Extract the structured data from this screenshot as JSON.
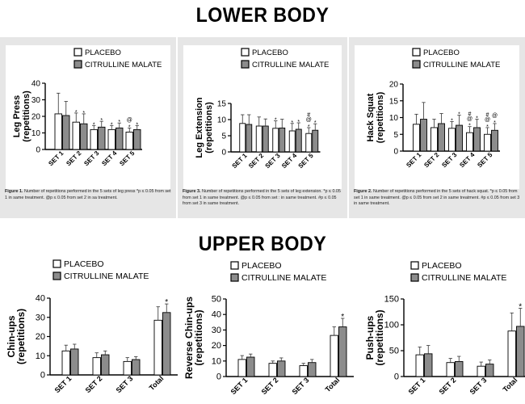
{
  "headings": {
    "lower": "LOWER BODY",
    "upper": "UPPER BODY"
  },
  "colors": {
    "placebo_fill": "#ffffff",
    "citrulline_fill": "#8c8c8c",
    "panel_bg": "#e6e6e6",
    "ink": "#000000"
  },
  "legend": {
    "placebo": "PLACEBO",
    "citrulline": "CITRULLINE MALATE"
  },
  "captions": {
    "fig1_label": "Figure 1.",
    "fig1_text": "Number of repetitions performed in the 5 sets of leg press *p ≤ 0.05 from set 1 in same treatment. @p ≤ 0.05 from set 2 in sa treatment.",
    "fig3_label": "Figure 3.",
    "fig3_text": "Number of repetitions performed in the 5 sets of leg extension. *p ≤ 0.05 from set 1 in same treatment. @p ≤ 0.05 from set : in same treatment. #p ≤ 0.05 from set 3 in same treatment.",
    "fig2_label": "Figure 2.",
    "fig2_text": "Number of repetitions performed in the 5 sets of hack squat. *p ≤ 0.05 from set 1 in same treatment. @p ≤ 0.05 from set 2 in same treatment. #p ≤ 0.05 from set 3 in same treatment."
  },
  "chart_data": [
    {
      "id": "leg_press",
      "type": "bar",
      "ylabel": "Leg Press (repetitions)",
      "ylabel_lines": [
        "Leg Press",
        "(repetitions)"
      ],
      "ylim": [
        0,
        40
      ],
      "yticks": [
        0,
        10,
        20,
        30,
        40
      ],
      "categories": [
        "SET 1",
        "SET 2",
        "SET 3",
        "SET 4",
        "SET 5"
      ],
      "series": [
        {
          "name": "PLACEBO",
          "values": [
            21.5,
            16.5,
            12,
            12,
            10.5
          ],
          "errors": [
            12.5,
            5.5,
            2.5,
            2.5,
            2.5
          ]
        },
        {
          "name": "CITRULLINE MALATE",
          "values": [
            20.5,
            15.5,
            13.5,
            13,
            12
          ],
          "errors": [
            8.5,
            6,
            3.5,
            3,
            2.5
          ]
        }
      ],
      "annotations": [
        {
          "category": 1,
          "series": 0,
          "marks": [
            "*"
          ]
        },
        {
          "category": 1,
          "series": 1,
          "marks": [
            "*"
          ]
        },
        {
          "category": 2,
          "series": 0,
          "marks": [
            "*"
          ]
        },
        {
          "category": 2,
          "series": 1,
          "marks": [
            "*"
          ]
        },
        {
          "category": 3,
          "series": 0,
          "marks": [
            "*"
          ]
        },
        {
          "category": 3,
          "series": 1,
          "marks": [
            "*"
          ]
        },
        {
          "category": 4,
          "series": 0,
          "marks": [
            "@",
            "*"
          ]
        },
        {
          "category": 4,
          "series": 1,
          "marks": [
            "*"
          ]
        }
      ]
    },
    {
      "id": "leg_extension",
      "type": "bar",
      "ylabel": "Leg Extension (repetitions)",
      "ylabel_lines": [
        "Leg Extension",
        "(repetitions)"
      ],
      "ylim": [
        0,
        15
      ],
      "yticks": [
        0,
        5,
        10,
        15
      ],
      "categories": [
        "SET 1",
        "SET 2",
        "SET 3",
        "SET 4",
        "SET 5"
      ],
      "series": [
        {
          "name": "PLACEBO",
          "values": [
            8.8,
            8,
            7.3,
            6.5,
            5.7
          ],
          "errors": [
            2.7,
            2.8,
            2.3,
            2.3,
            1.8
          ]
        },
        {
          "name": "CITRULLINE MALATE",
          "values": [
            8.5,
            8,
            7.4,
            7,
            6.7
          ],
          "errors": [
            3,
            2.2,
            2.7,
            2,
            2
          ]
        }
      ],
      "annotations": [
        {
          "category": 2,
          "series": 0,
          "marks": [
            "*"
          ]
        },
        {
          "category": 3,
          "series": 0,
          "marks": [
            "*"
          ]
        },
        {
          "category": 3,
          "series": 1,
          "marks": [
            "*"
          ]
        },
        {
          "category": 4,
          "series": 0,
          "marks": [
            "#",
            "@",
            "*"
          ]
        },
        {
          "category": 4,
          "series": 1,
          "marks": [
            "*"
          ]
        }
      ]
    },
    {
      "id": "hack_squat",
      "type": "bar",
      "ylabel": "Hack Squat (repetitions)",
      "ylabel_lines": [
        "Hack Squat",
        "(repetitions)"
      ],
      "ylim": [
        0,
        20
      ],
      "yticks": [
        0,
        5,
        10,
        15,
        20
      ],
      "categories": [
        "SET 1",
        "SET 2",
        "SET 3",
        "SET 4",
        "SET 5"
      ],
      "series": [
        {
          "name": "PLACEBO",
          "values": [
            8,
            7,
            6.8,
            5.5,
            5
          ],
          "errors": [
            3,
            2.5,
            2,
            1.8,
            2
          ]
        },
        {
          "name": "CITRULLINE MALATE",
          "values": [
            9.5,
            8.2,
            7.7,
            7,
            6.2
          ],
          "errors": [
            5,
            3,
            3,
            2.5,
            2
          ]
        }
      ],
      "annotations": [
        {
          "category": 2,
          "series": 0,
          "marks": [
            "*"
          ]
        },
        {
          "category": 2,
          "series": 1,
          "marks": [
            "*"
          ]
        },
        {
          "category": 3,
          "series": 0,
          "marks": [
            "#",
            "@",
            "*"
          ]
        },
        {
          "category": 3,
          "series": 1,
          "marks": [
            "*"
          ]
        },
        {
          "category": 4,
          "series": 0,
          "marks": [
            "#",
            "@",
            "*"
          ]
        },
        {
          "category": 4,
          "series": 1,
          "marks": [
            "@",
            "*"
          ]
        }
      ]
    },
    {
      "id": "chin_ups",
      "type": "bar",
      "ylabel": "Chin-ups (repetitions)",
      "ylabel_lines": [
        "Chin-ups",
        "(repetitions)"
      ],
      "ylim": [
        0,
        40
      ],
      "yticks": [
        0,
        10,
        20,
        30,
        40
      ],
      "categories": [
        "SET 1",
        "SET 2",
        "SET 3",
        "Total"
      ],
      "series": [
        {
          "name": "PLACEBO",
          "values": [
            12.5,
            9,
            7,
            28.5
          ],
          "errors": [
            3,
            2.5,
            2,
            7
          ]
        },
        {
          "name": "CITRULLINE MALATE",
          "values": [
            13.5,
            10.5,
            8,
            32.5
          ],
          "errors": [
            2.5,
            2,
            1.5,
            4.5
          ]
        }
      ],
      "annotations": [
        {
          "category": 3,
          "series": 1,
          "marks": [
            "*"
          ]
        }
      ]
    },
    {
      "id": "reverse_chin_ups",
      "type": "bar",
      "ylabel": "Reverse Chin-ups (repetitions)",
      "ylabel_lines": [
        "Reverse Chin-ups",
        "(repetitions)"
      ],
      "ylim": [
        0,
        50
      ],
      "yticks": [
        0,
        10,
        20,
        30,
        40,
        50
      ],
      "categories": [
        "SET 1",
        "SET 2",
        "SET 3",
        "Total"
      ],
      "series": [
        {
          "name": "PLACEBO",
          "values": [
            11,
            8.5,
            7,
            26.5
          ],
          "errors": [
            2.5,
            1.5,
            1.5,
            5.5
          ]
        },
        {
          "name": "CITRULLINE MALATE",
          "values": [
            12.5,
            10,
            9,
            32
          ],
          "errors": [
            2,
            2,
            2,
            5.5
          ]
        }
      ],
      "annotations": [
        {
          "category": 3,
          "series": 1,
          "marks": [
            "*"
          ]
        }
      ]
    },
    {
      "id": "push_ups",
      "type": "bar",
      "ylabel": "Push-ups (repetitions)",
      "ylabel_lines": [
        "Push-ups",
        "(repetitions)"
      ],
      "ylim": [
        0,
        150
      ],
      "yticks": [
        0,
        50,
        100,
        150
      ],
      "categories": [
        "SET 1",
        "SET 2",
        "SET 3",
        "Total"
      ],
      "series": [
        {
          "name": "PLACEBO",
          "values": [
            42,
            27,
            20,
            88
          ],
          "errors": [
            15,
            8,
            8,
            35
          ]
        },
        {
          "name": "CITRULLINE MALATE",
          "values": [
            44,
            29,
            24,
            97
          ],
          "errors": [
            16,
            10,
            8,
            35
          ]
        }
      ],
      "annotations": [
        {
          "category": 3,
          "series": 1,
          "marks": [
            "*"
          ]
        }
      ]
    }
  ]
}
